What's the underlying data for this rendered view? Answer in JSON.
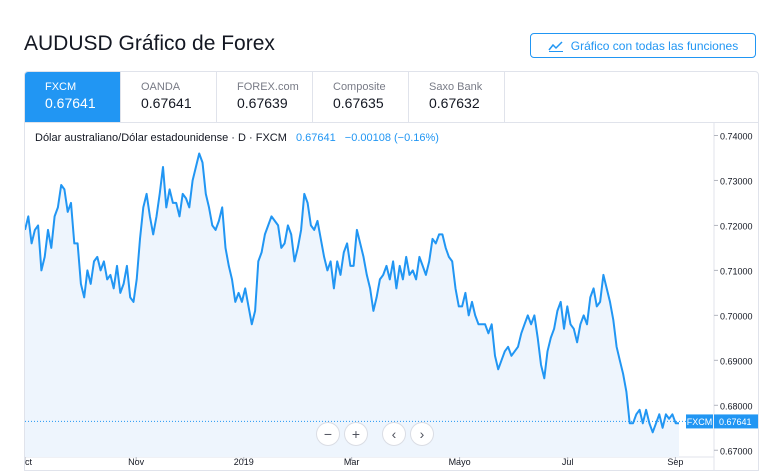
{
  "page": {
    "title": "AUDUSD Gráfico de Forex",
    "full_chart_button": "Gráfico con todas las funciones",
    "icons": {
      "full_chart": "chart-line-icon",
      "zoom_out": "minus-icon",
      "zoom_in": "plus-icon",
      "scroll_left": "chevron-left-icon",
      "scroll_right": "chevron-right-icon"
    },
    "colors": {
      "accent": "#2196f3",
      "line": "#2196f3",
      "area": "#eef5fd"
    }
  },
  "tabs": [
    {
      "name": "FXCM",
      "price": "0.67641",
      "active": true
    },
    {
      "name": "OANDA",
      "price": "0.67641",
      "active": false
    },
    {
      "name": "FOREX.com",
      "price": "0.67639",
      "active": false
    },
    {
      "name": "Composite",
      "price": "0.67635",
      "active": false
    },
    {
      "name": "Saxo Bank",
      "price": "0.67632",
      "active": false
    }
  ],
  "legend": {
    "symbol": "Dólar australiano/Dólar estadounidense · D · FXCM",
    "last": "0.67641",
    "change": "−0.00108 (−0.16%)"
  },
  "controls": {
    "zoom_out": "−",
    "zoom_in": "+",
    "left": "‹",
    "right": "›"
  },
  "chart_data": {
    "type": "area",
    "title": "AUDUSD",
    "series": [
      {
        "name": "FXCM",
        "values": [
          0.719,
          0.722,
          0.716,
          0.719,
          0.72,
          0.71,
          0.713,
          0.719,
          0.715,
          0.722,
          0.724,
          0.729,
          0.728,
          0.723,
          0.725,
          0.716,
          0.716,
          0.707,
          0.704,
          0.71,
          0.707,
          0.712,
          0.713,
          0.71,
          0.712,
          0.708,
          0.709,
          0.706,
          0.711,
          0.705,
          0.707,
          0.711,
          0.704,
          0.703,
          0.708,
          0.717,
          0.724,
          0.727,
          0.722,
          0.718,
          0.722,
          0.727,
          0.733,
          0.724,
          0.728,
          0.725,
          0.725,
          0.722,
          0.727,
          0.726,
          0.724,
          0.73,
          0.733,
          0.736,
          0.734,
          0.727,
          0.724,
          0.72,
          0.719,
          0.721,
          0.724,
          0.715,
          0.711,
          0.708,
          0.703,
          0.705,
          0.703,
          0.706,
          0.702,
          0.698,
          0.701,
          0.712,
          0.714,
          0.718,
          0.72,
          0.722,
          0.721,
          0.72,
          0.715,
          0.716,
          0.72,
          0.718,
          0.712,
          0.715,
          0.719,
          0.727,
          0.725,
          0.72,
          0.719,
          0.721,
          0.717,
          0.713,
          0.71,
          0.712,
          0.706,
          0.712,
          0.709,
          0.714,
          0.716,
          0.711,
          0.711,
          0.719,
          0.716,
          0.713,
          0.709,
          0.706,
          0.701,
          0.704,
          0.708,
          0.709,
          0.711,
          0.708,
          0.712,
          0.706,
          0.711,
          0.708,
          0.713,
          0.709,
          0.71,
          0.708,
          0.713,
          0.711,
          0.709,
          0.712,
          0.717,
          0.716,
          0.718,
          0.718,
          0.715,
          0.713,
          0.712,
          0.706,
          0.702,
          0.702,
          0.705,
          0.7,
          0.703,
          0.7,
          0.698,
          0.698,
          0.698,
          0.696,
          0.698,
          0.691,
          0.688,
          0.69,
          0.692,
          0.693,
          0.691,
          0.692,
          0.693,
          0.696,
          0.698,
          0.7,
          0.698,
          0.7,
          0.695,
          0.689,
          0.686,
          0.692,
          0.695,
          0.697,
          0.701,
          0.703,
          0.697,
          0.702,
          0.698,
          0.697,
          0.694,
          0.698,
          0.7,
          0.698,
          0.704,
          0.706,
          0.702,
          0.703,
          0.709,
          0.706,
          0.703,
          0.699,
          0.693,
          0.69,
          0.687,
          0.683,
          0.676,
          0.676,
          0.678,
          0.679,
          0.676,
          0.679,
          0.676,
          0.674,
          0.676,
          0.678,
          0.675,
          0.678,
          0.677,
          0.678,
          0.676,
          0.676
        ]
      }
    ],
    "x_tick_labels": [
      "Oct",
      "Nov",
      "2019",
      "Mar",
      "Mayo",
      "Jul",
      "Sep"
    ],
    "y_tick_labels": [
      "0.74000",
      "0.73000",
      "0.72000",
      "0.71000",
      "0.70000",
      "0.69000",
      "0.68000",
      "0.67000"
    ],
    "ylim": [
      0.6685,
      0.743
    ],
    "last_label": {
      "name": "FXCM",
      "value": "0.67641"
    }
  }
}
